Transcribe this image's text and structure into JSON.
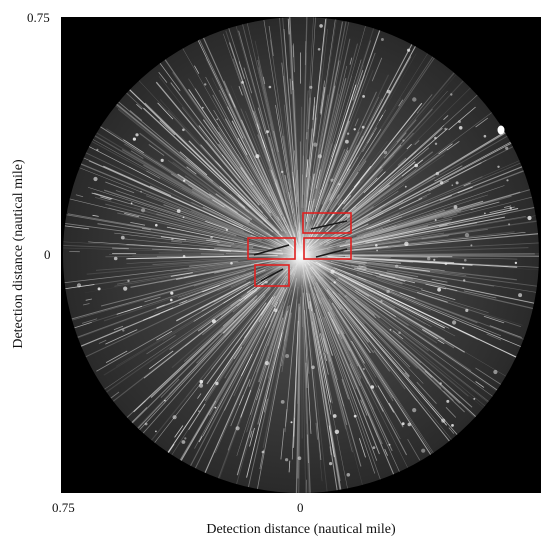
{
  "axes": {
    "y_tick_top": "0.75",
    "y_tick_mid": "0",
    "x_tick_left": "0.75",
    "x_tick_mid": "0",
    "ylabel": "Detection distance (nautical mile)",
    "xlabel": "Detection distance (nautical mile)"
  },
  "image": {
    "description_name": "radar-ppi-image",
    "background_color": "#000000",
    "disc_color": "#3a3a3a",
    "highlight_box_color": "#e02020",
    "highlight_box_count": 4
  }
}
